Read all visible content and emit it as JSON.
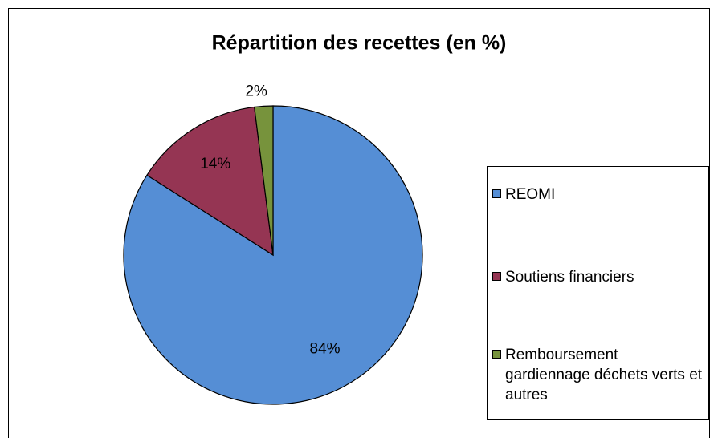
{
  "chart_data": {
    "type": "pie",
    "title": "Répartition des recettes (en %)",
    "categories": [
      "REOMI",
      "Soutiens financiers",
      "Remboursement gardiennage déchets verts et autres"
    ],
    "values": [
      84,
      14,
      2
    ],
    "value_labels": [
      "84%",
      "14%",
      "2%"
    ],
    "colors": [
      "#558ed5",
      "#953553",
      "#77933c"
    ],
    "legend": "right"
  }
}
